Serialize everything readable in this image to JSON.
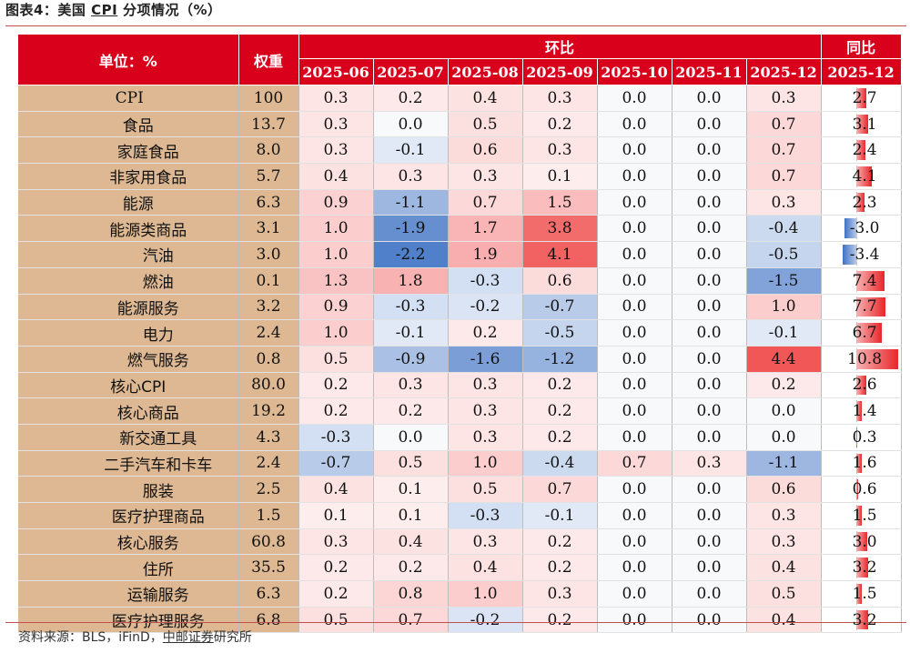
{
  "figure": {
    "title_prefix": "图表4：美国 ",
    "title_cpi": "CPI",
    "title_suffix": " 分项情况（%）",
    "source_prefix": "资料来源：BLS，iFinD，",
    "source_brand": "中邮证券",
    "source_suffix": "研究所"
  },
  "header": {
    "unit_label": "单位：%",
    "weight_label": "权重",
    "mom_label": "环比",
    "yoy_label": "同比",
    "months": [
      "2025-06",
      "2025-07",
      "2025-08",
      "2025-09",
      "2025-10",
      "2025-11",
      "2025-12"
    ],
    "yoy_month": "2025-12"
  },
  "colors": {
    "header_red": "#d9001b",
    "label_tan": "#ddb892",
    "pos_scale": "#f04545",
    "neg_scale": "#3e72c4"
  },
  "rows": [
    {
      "name": "CPI",
      "level": 0,
      "weight": "100",
      "mom": [
        "0.3",
        "0.2",
        "0.4",
        "0.3",
        "0.0",
        "0.0",
        "0.3"
      ],
      "yoy": "2.7",
      "sep": false
    },
    {
      "name": "食品",
      "level": 1,
      "weight": "13.7",
      "mom": [
        "0.3",
        "0.0",
        "0.5",
        "0.2",
        "0.0",
        "0.0",
        "0.7"
      ],
      "yoy": "3.1",
      "sep": false
    },
    {
      "name": "家庭食品",
      "level": 2,
      "weight": "8.0",
      "mom": [
        "0.3",
        "-0.1",
        "0.6",
        "0.3",
        "0.0",
        "0.0",
        "0.7"
      ],
      "yoy": "2.4",
      "sep": false
    },
    {
      "name": "非家用食品",
      "level": 2,
      "weight": "5.7",
      "mom": [
        "0.4",
        "0.3",
        "0.3",
        "0.1",
        "0.0",
        "0.0",
        "0.7"
      ],
      "yoy": "4.1",
      "sep": false
    },
    {
      "name": "能源",
      "level": 1,
      "weight": "6.3",
      "mom": [
        "0.9",
        "-1.1",
        "0.7",
        "1.5",
        "0.0",
        "0.0",
        "0.3"
      ],
      "yoy": "2.3",
      "sep": false
    },
    {
      "name": "能源类商品",
      "level": 2,
      "weight": "3.1",
      "mom": [
        "1.0",
        "-1.9",
        "1.7",
        "3.8",
        "0.0",
        "0.0",
        "-0.4"
      ],
      "yoy": "-3.0",
      "sep": false
    },
    {
      "name": "汽油",
      "level": 3,
      "weight": "3.0",
      "mom": [
        "1.0",
        "-2.2",
        "1.9",
        "4.1",
        "0.0",
        "0.0",
        "-0.5"
      ],
      "yoy": "-3.4",
      "sep": false
    },
    {
      "name": "燃油",
      "level": 3,
      "weight": "0.1",
      "mom": [
        "1.3",
        "1.8",
        "-0.3",
        "0.6",
        "0.0",
        "0.0",
        "-1.5"
      ],
      "yoy": "7.4",
      "sep": false
    },
    {
      "name": "能源服务",
      "level": 2,
      "weight": "3.2",
      "mom": [
        "0.9",
        "-0.3",
        "-0.2",
        "-0.7",
        "0.0",
        "0.0",
        "1.0"
      ],
      "yoy": "7.7",
      "sep": false
    },
    {
      "name": "电力",
      "level": 3,
      "weight": "2.4",
      "mom": [
        "1.0",
        "-0.1",
        "0.2",
        "-0.5",
        "0.0",
        "0.0",
        "-0.1"
      ],
      "yoy": "6.7",
      "sep": false
    },
    {
      "name": "燃气服务",
      "level": 3,
      "weight": "0.8",
      "mom": [
        "0.5",
        "-0.9",
        "-1.6",
        "-1.2",
        "0.0",
        "0.0",
        "4.4"
      ],
      "yoy": "10.8",
      "sep": false
    },
    {
      "name": "核心CPI",
      "level": 1,
      "weight": "80.0",
      "mom": [
        "0.2",
        "0.3",
        "0.3",
        "0.2",
        "0.0",
        "0.0",
        "0.2"
      ],
      "yoy": "2.6",
      "sep": true
    },
    {
      "name": "核心商品",
      "level": 2,
      "weight": "19.2",
      "mom": [
        "0.2",
        "0.2",
        "0.3",
        "0.2",
        "0.0",
        "0.0",
        "0.0"
      ],
      "yoy": "1.4",
      "sep": true
    },
    {
      "name": "新交通工具",
      "level": 3,
      "weight": "4.3",
      "mom": [
        "-0.3",
        "0.0",
        "0.3",
        "0.2",
        "0.0",
        "0.0",
        "0.0"
      ],
      "yoy": "0.3",
      "sep": false
    },
    {
      "name": "二手汽车和卡车",
      "level": 3,
      "weight": "2.4",
      "mom": [
        "-0.7",
        "0.5",
        "1.0",
        "-0.4",
        "0.7",
        "0.3",
        "-1.1"
      ],
      "yoy": "1.6",
      "sep": false
    },
    {
      "name": "服装",
      "level": 3,
      "weight": "2.5",
      "mom": [
        "0.4",
        "0.1",
        "0.5",
        "0.7",
        "0.0",
        "0.0",
        "0.6"
      ],
      "yoy": "0.6",
      "sep": false
    },
    {
      "name": "医疗护理商品",
      "level": 3,
      "weight": "1.5",
      "mom": [
        "0.1",
        "0.1",
        "-0.3",
        "-0.1",
        "0.0",
        "0.0",
        "0.3"
      ],
      "yoy": "1.5",
      "sep": false
    },
    {
      "name": "核心服务",
      "level": 2,
      "weight": "60.8",
      "mom": [
        "0.3",
        "0.4",
        "0.3",
        "0.2",
        "0.0",
        "0.0",
        "0.3"
      ],
      "yoy": "3.0",
      "sep": false
    },
    {
      "name": "住所",
      "level": 3,
      "weight": "35.5",
      "mom": [
        "0.2",
        "0.2",
        "0.4",
        "0.2",
        "0.0",
        "0.0",
        "0.4"
      ],
      "yoy": "3.2",
      "sep": false
    },
    {
      "name": "运输服务",
      "level": 3,
      "weight": "6.3",
      "mom": [
        "0.2",
        "0.8",
        "1.0",
        "0.3",
        "0.0",
        "0.0",
        "0.5"
      ],
      "yoy": "1.5",
      "sep": false
    },
    {
      "name": "医疗护理服务",
      "level": 3,
      "weight": "6.8",
      "mom": [
        "0.5",
        "0.7",
        "-0.2",
        "0.2",
        "0.0",
        "0.0",
        "0.4"
      ],
      "yoy": "3.2",
      "sep": false
    }
  ]
}
